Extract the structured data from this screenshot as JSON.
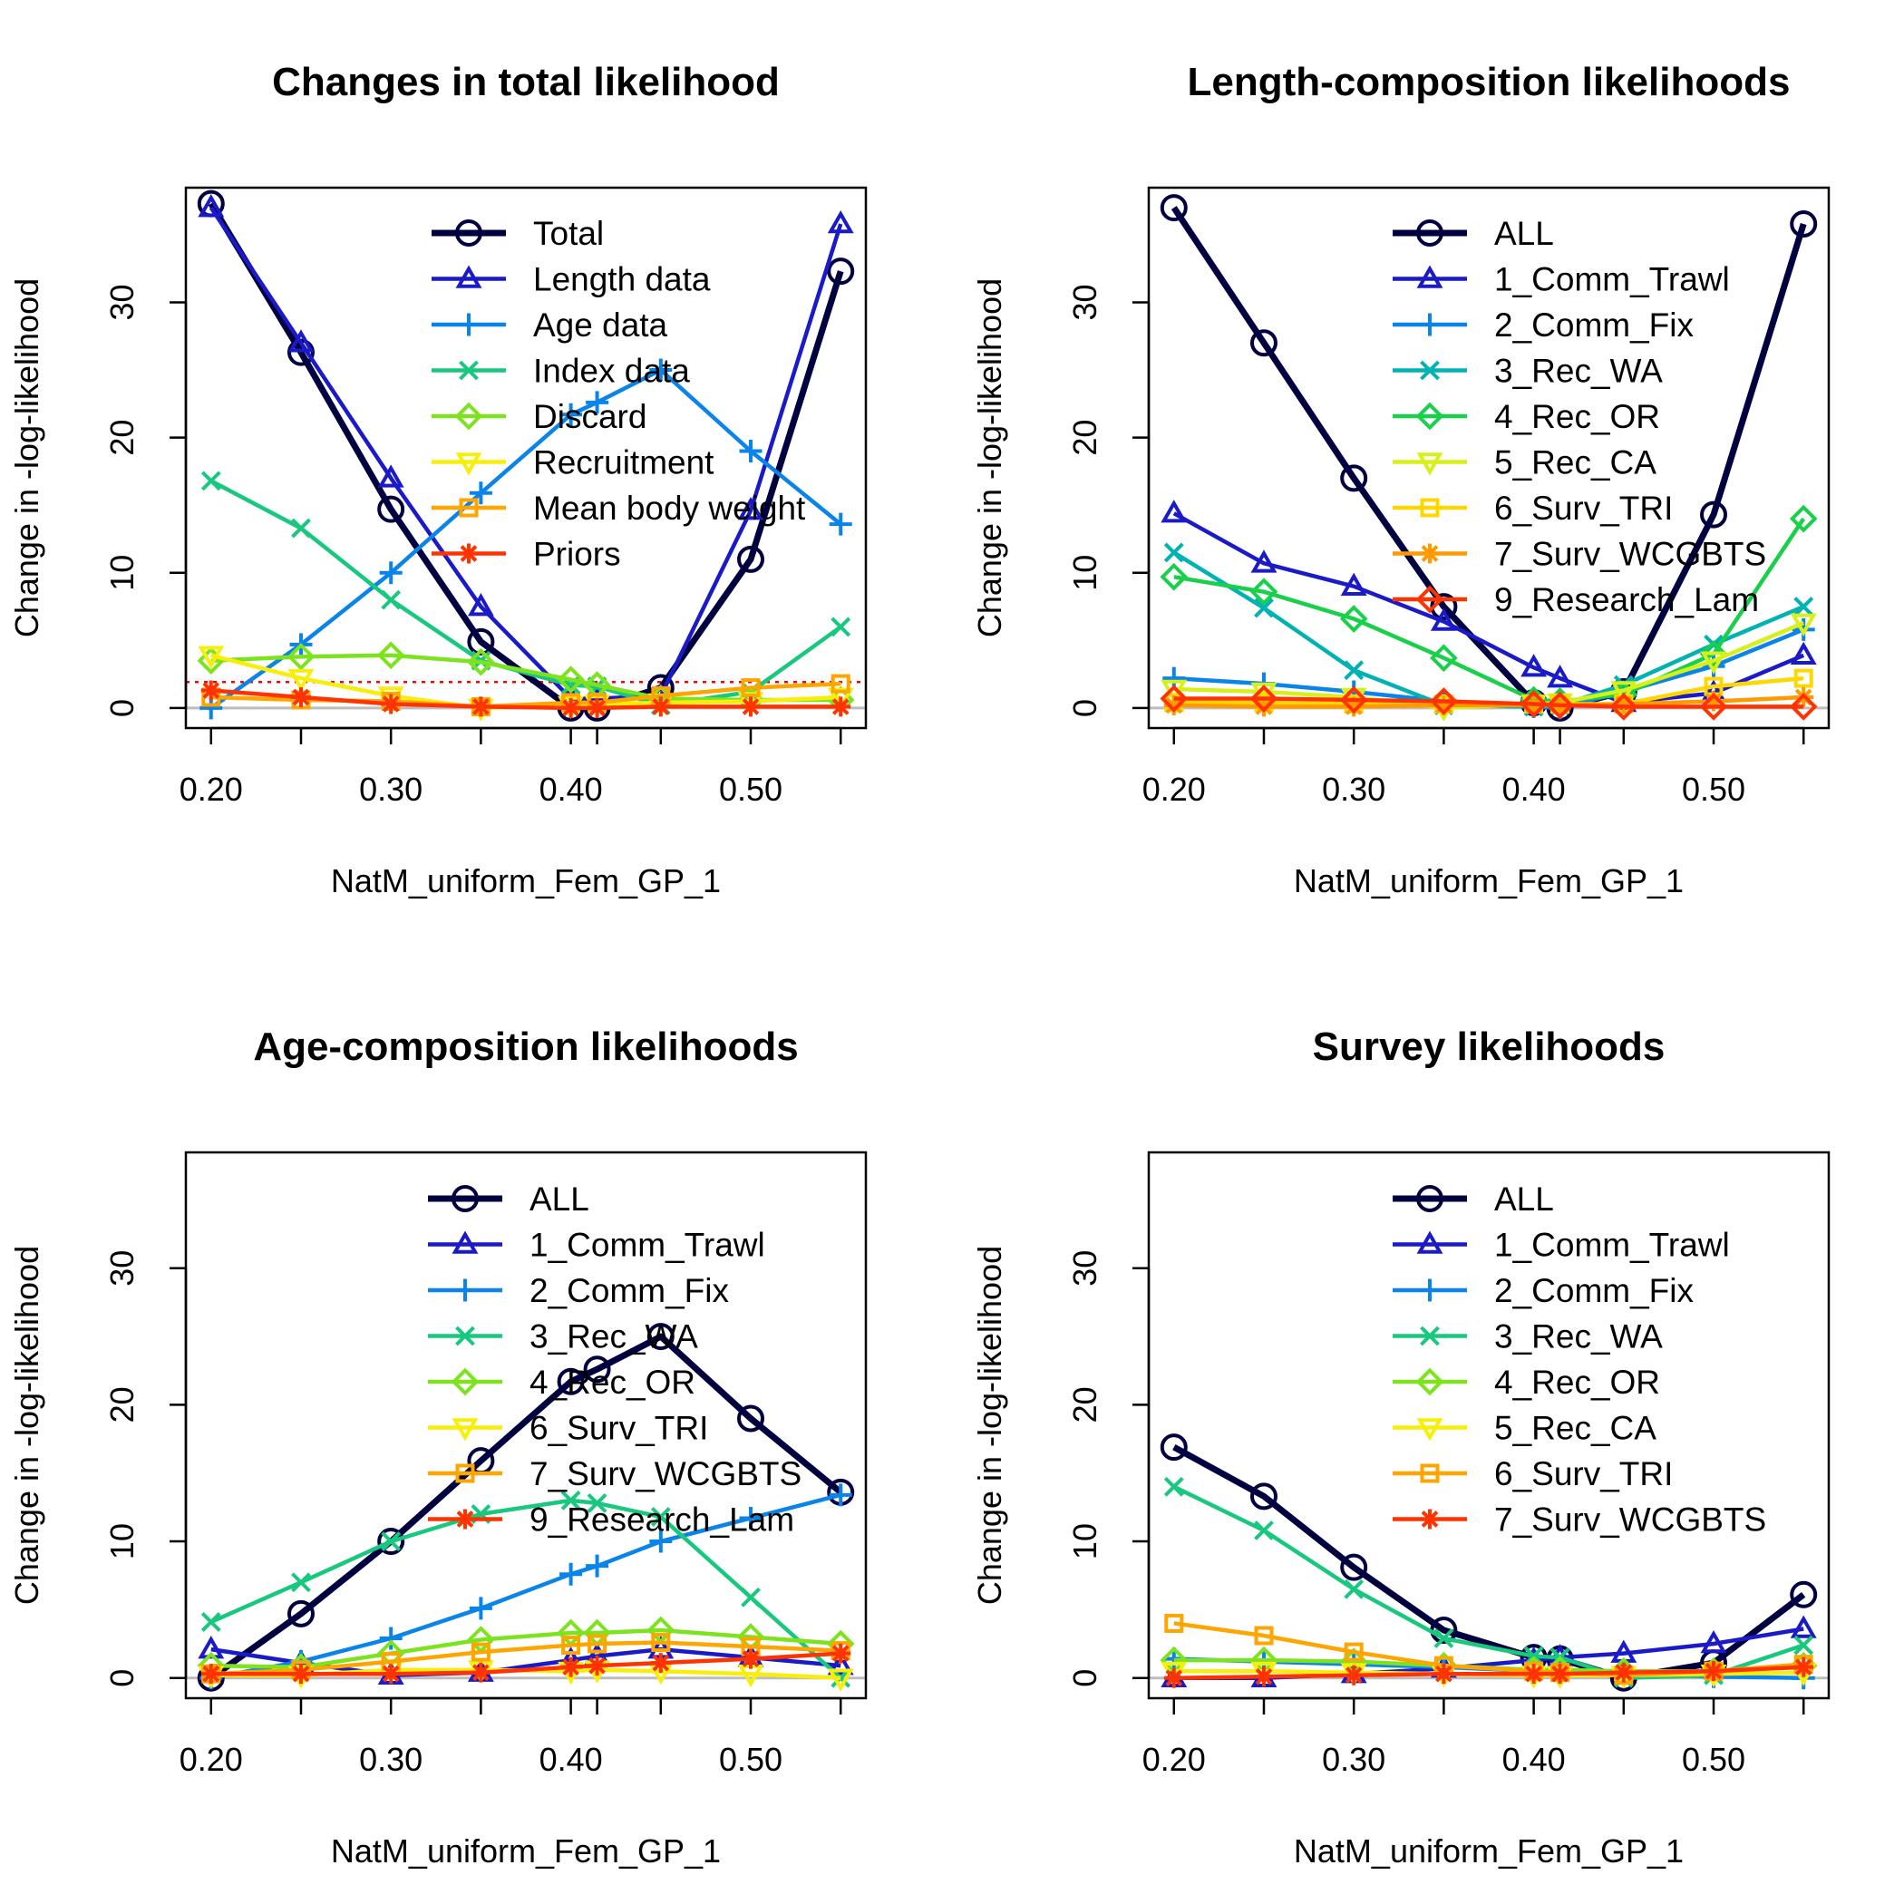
{
  "chart_data": [
    {
      "type": "line",
      "title": "Changes in total likelihood",
      "xlabel": "NatM_uniform_Fem_GP_1",
      "ylabel": "Change in -log-likelihood",
      "xlim": [
        0.2,
        0.55
      ],
      "ylim": [
        0,
        37
      ],
      "x_ticks": [
        "0.20",
        "0.30",
        "0.40",
        "0.50"
      ],
      "y_ticks": [
        "0",
        "10",
        "20",
        "30"
      ],
      "x": [
        0.2,
        0.25,
        0.3,
        0.35,
        0.4,
        0.4146,
        0.45,
        0.5,
        0.55
      ],
      "threshold": 1.92,
      "series": [
        {
          "name": "Total",
          "color": "#000040",
          "marker": "circle",
          "values": [
            37.3,
            26.3,
            14.7,
            4.9,
            0.0,
            0.0,
            1.5,
            11.0,
            32.3
          ]
        },
        {
          "name": "Length data",
          "color": "#1a1ac8",
          "marker": "triangle",
          "values": [
            37.0,
            27.0,
            17.0,
            7.5,
            0.7,
            0.7,
            0.9,
            14.6,
            35.8
          ]
        },
        {
          "name": "Age data",
          "color": "#0a84e8",
          "marker": "plus",
          "values": [
            0.0,
            4.7,
            10.0,
            15.9,
            21.7,
            22.6,
            25.0,
            19.0,
            13.6
          ]
        },
        {
          "name": "Index data",
          "color": "#19c87f",
          "marker": "cross",
          "values": [
            16.8,
            13.3,
            8.0,
            3.5,
            1.7,
            1.6,
            0.2,
            1.2,
            6.0
          ]
        },
        {
          "name": "Discard",
          "color": "#7ce31e",
          "marker": "diamond",
          "values": [
            3.5,
            3.8,
            3.9,
            3.4,
            2.1,
            1.7,
            0.7,
            0.6,
            0.6
          ]
        },
        {
          "name": "Recruitment",
          "color": "#f7ef0b",
          "marker": "triangle-down",
          "values": [
            3.9,
            2.2,
            0.9,
            0.0,
            0.2,
            0.3,
            0.4,
            0.5,
            0.8
          ]
        },
        {
          "name": "Mean body weight",
          "color": "#ffa500",
          "marker": "square",
          "values": [
            0.8,
            0.6,
            0.5,
            0.1,
            0.4,
            0.4,
            0.9,
            1.5,
            1.8
          ]
        },
        {
          "name": "Priors",
          "color": "#ff3300",
          "marker": "asterisk",
          "values": [
            1.3,
            0.8,
            0.3,
            0.1,
            0.0,
            0.0,
            0.1,
            0.1,
            0.1
          ]
        }
      ]
    },
    {
      "type": "line",
      "title": "Length-composition likelihoods",
      "xlabel": "NatM_uniform_Fem_GP_1",
      "ylabel": "Change in -log-likelihood",
      "xlim": [
        0.2,
        0.55
      ],
      "ylim": [
        0,
        37
      ],
      "x_ticks": [
        "0.20",
        "0.30",
        "0.40",
        "0.50"
      ],
      "y_ticks": [
        "0",
        "10",
        "20",
        "30"
      ],
      "x": [
        0.2,
        0.25,
        0.3,
        0.35,
        0.4,
        0.4146,
        0.45,
        0.5,
        0.55
      ],
      "series": [
        {
          "name": "ALL",
          "color": "#000040",
          "marker": "circle",
          "values": [
            37.0,
            27.0,
            17.0,
            7.5,
            0.4,
            0.0,
            1.2,
            14.3,
            35.8
          ]
        },
        {
          "name": "1_Comm_Trawl",
          "color": "#1a1ac8",
          "marker": "triangle",
          "values": [
            14.4,
            10.7,
            9.0,
            6.4,
            3.0,
            2.2,
            0.4,
            1.1,
            3.9
          ]
        },
        {
          "name": "2_Comm_Fix",
          "color": "#0a84e8",
          "marker": "plus",
          "values": [
            2.2,
            1.8,
            1.2,
            0.5,
            0.1,
            0.0,
            1.2,
            3.1,
            5.8
          ]
        },
        {
          "name": "3_Rec_WA",
          "color": "#00b2b2",
          "marker": "cross",
          "values": [
            11.5,
            7.4,
            2.8,
            0.2,
            0.1,
            0.2,
            1.7,
            4.7,
            7.5
          ]
        },
        {
          "name": "4_Rec_OR",
          "color": "#19d04a",
          "marker": "diamond",
          "values": [
            9.7,
            8.6,
            6.6,
            3.7,
            0.6,
            0.5,
            1.0,
            4.0,
            14.0
          ]
        },
        {
          "name": "5_Rec_CA",
          "color": "#d8f01a",
          "marker": "triangle-down",
          "values": [
            1.4,
            1.2,
            0.8,
            0.0,
            0.3,
            0.4,
            1.3,
            3.5,
            6.3
          ]
        },
        {
          "name": "6_Surv_TRI",
          "color": "#ffd700",
          "marker": "square",
          "values": [
            0.4,
            0.4,
            0.3,
            0.3,
            0.3,
            0.3,
            0.3,
            1.6,
            2.2
          ]
        },
        {
          "name": "7_Surv_WCGBTS",
          "color": "#ff9900",
          "marker": "asterisk",
          "values": [
            0.2,
            0.1,
            0.1,
            0.2,
            0.2,
            0.2,
            0.3,
            0.5,
            0.8
          ]
        },
        {
          "name": "9_Research_Lam",
          "color": "#ff3300",
          "marker": "diamond",
          "values": [
            0.7,
            0.7,
            0.6,
            0.5,
            0.3,
            0.2,
            0.1,
            0.1,
            0.1
          ]
        }
      ]
    },
    {
      "type": "line",
      "title": "Age-composition likelihoods",
      "xlabel": "NatM_uniform_Fem_GP_1",
      "ylabel": "Change in -log-likelihood",
      "xlim": [
        0.2,
        0.55
      ],
      "ylim": [
        0,
        37
      ],
      "x_ticks": [
        "0.20",
        "0.30",
        "0.40",
        "0.50"
      ],
      "y_ticks": [
        "0",
        "10",
        "20",
        "30"
      ],
      "x": [
        0.2,
        0.25,
        0.3,
        0.35,
        0.4,
        0.4146,
        0.45,
        0.5,
        0.55
      ],
      "series": [
        {
          "name": "ALL",
          "color": "#000040",
          "marker": "circle",
          "values": [
            0.0,
            4.7,
            10.0,
            15.9,
            21.7,
            22.6,
            25.0,
            19.0,
            13.6
          ]
        },
        {
          "name": "1_Comm_Trawl",
          "color": "#1a1ac8",
          "marker": "triangle",
          "values": [
            2.1,
            1.1,
            0.2,
            0.4,
            1.3,
            1.6,
            2.1,
            1.5,
            0.9
          ]
        },
        {
          "name": "2_Comm_Fix",
          "color": "#0a84e8",
          "marker": "plus",
          "values": [
            0.0,
            1.2,
            2.9,
            5.1,
            7.6,
            8.2,
            10.0,
            11.7,
            13.4
          ]
        },
        {
          "name": "3_Rec_WA",
          "color": "#19c87f",
          "marker": "cross",
          "values": [
            4.1,
            7.0,
            10.0,
            12.0,
            13.0,
            12.8,
            11.8,
            5.9,
            0.0
          ]
        },
        {
          "name": "4_Rec_OR",
          "color": "#7ce31e",
          "marker": "diamond",
          "values": [
            0.9,
            0.8,
            1.8,
            2.8,
            3.3,
            3.3,
            3.5,
            3.0,
            2.5
          ]
        },
        {
          "name": "6_Surv_TRI",
          "color": "#f7ef0b",
          "marker": "triangle-down",
          "values": [
            0.2,
            0.2,
            0.6,
            0.6,
            0.5,
            0.6,
            0.5,
            0.3,
            0.0
          ]
        },
        {
          "name": "7_Surv_WCGBTS",
          "color": "#ffa500",
          "marker": "square",
          "values": [
            0.3,
            0.6,
            1.2,
            1.9,
            2.4,
            2.5,
            2.6,
            2.3,
            2.0
          ]
        },
        {
          "name": "9_Research_Lam",
          "color": "#ff3300",
          "marker": "asterisk",
          "values": [
            0.3,
            0.3,
            0.3,
            0.4,
            0.8,
            0.9,
            1.1,
            1.4,
            1.8
          ]
        }
      ]
    },
    {
      "type": "line",
      "title": "Survey likelihoods",
      "xlabel": "NatM_uniform_Fem_GP_1",
      "ylabel": "Change in -log-likelihood",
      "xlim": [
        0.2,
        0.55
      ],
      "ylim": [
        0,
        37
      ],
      "x_ticks": [
        "0.20",
        "0.30",
        "0.40",
        "0.50"
      ],
      "y_ticks": [
        "0",
        "10",
        "20",
        "30"
      ],
      "x": [
        0.2,
        0.25,
        0.3,
        0.35,
        0.4,
        0.4146,
        0.45,
        0.5,
        0.55
      ],
      "series": [
        {
          "name": "ALL",
          "color": "#000040",
          "marker": "circle",
          "values": [
            16.9,
            13.3,
            8.1,
            3.5,
            1.5,
            1.4,
            0.0,
            1.1,
            6.1
          ]
        },
        {
          "name": "1_Comm_Trawl",
          "color": "#1a1ac8",
          "marker": "triangle",
          "values": [
            0.0,
            0.0,
            0.3,
            0.7,
            1.3,
            1.5,
            1.8,
            2.5,
            3.6
          ]
        },
        {
          "name": "2_Comm_Fix",
          "color": "#0a84e8",
          "marker": "plus",
          "values": [
            1.4,
            1.2,
            1.0,
            0.8,
            0.5,
            0.5,
            0.3,
            0.1,
            0.0
          ]
        },
        {
          "name": "3_Rec_WA",
          "color": "#19c87f",
          "marker": "cross",
          "values": [
            14.0,
            10.8,
            6.5,
            2.9,
            1.6,
            1.5,
            0.0,
            0.2,
            2.4
          ]
        },
        {
          "name": "4_Rec_OR",
          "color": "#7ce31e",
          "marker": "diamond",
          "values": [
            1.3,
            1.3,
            1.2,
            0.9,
            0.6,
            0.6,
            0.5,
            0.5,
            0.9
          ]
        },
        {
          "name": "5_Rec_CA",
          "color": "#f7ef0b",
          "marker": "triangle-down",
          "values": [
            0.5,
            0.5,
            0.4,
            0.3,
            0.2,
            0.2,
            0.2,
            0.3,
            0.4
          ]
        },
        {
          "name": "6_Surv_TRI",
          "color": "#ffa500",
          "marker": "square",
          "values": [
            4.0,
            3.1,
            1.9,
            0.9,
            0.5,
            0.4,
            0.2,
            0.5,
            1.0
          ]
        },
        {
          "name": "7_Surv_WCGBTS",
          "color": "#ff3300",
          "marker": "asterisk",
          "values": [
            0.0,
            0.1,
            0.2,
            0.3,
            0.3,
            0.3,
            0.4,
            0.5,
            0.8
          ]
        }
      ]
    }
  ]
}
